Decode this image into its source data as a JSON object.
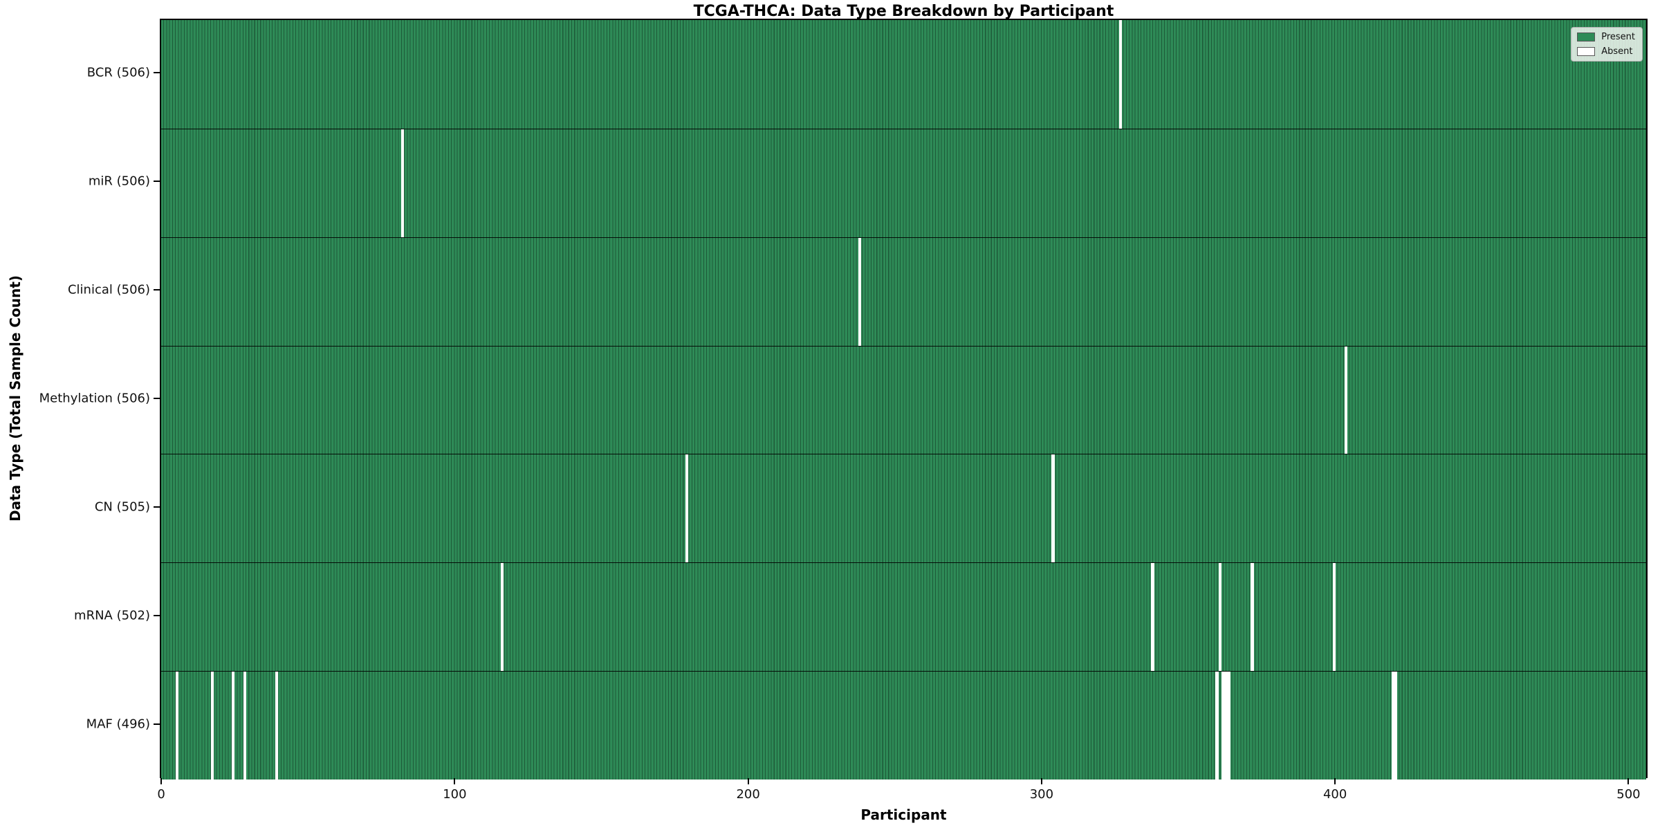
{
  "title": "TCGA-THCA: Data Type Breakdown by Participant",
  "legend": {
    "present_label": "Present",
    "absent_label": "Absent"
  },
  "chart_data": {
    "type": "heatmap",
    "title": "TCGA-THCA: Data Type Breakdown by Participant",
    "xlabel": "Participant",
    "ylabel": "Data Type (Total Sample Count)",
    "x_ticks": [
      0,
      100,
      200,
      300,
      400,
      500
    ],
    "x_range": [
      0,
      507
    ],
    "participants_total": 507,
    "grid": false,
    "legend_position": "upper-right",
    "colors": {
      "present": "#2E8B57",
      "bar_edge": "#1D5A38",
      "absent": "#FFFFFF",
      "axis": "#000000",
      "background": "#FFFFFF"
    },
    "legend_entries": [
      {
        "label": "Present",
        "color": "#2E8B57"
      },
      {
        "label": "Absent",
        "color": "#FFFFFF"
      }
    ],
    "rows": [
      {
        "data_type": "BCR",
        "label": "BCR (506)",
        "present_count": 506,
        "absent_participants": [
          327
        ]
      },
      {
        "data_type": "miR",
        "label": "miR (506)",
        "present_count": 506,
        "absent_participants": [
          82
        ]
      },
      {
        "data_type": "Clinical",
        "label": "Clinical (506)",
        "present_count": 506,
        "absent_participants": [
          238
        ]
      },
      {
        "data_type": "Methylation",
        "label": "Methylation (506)",
        "present_count": 506,
        "absent_participants": [
          404
        ]
      },
      {
        "data_type": "CN",
        "label": "CN (505)",
        "present_count": 505,
        "absent_participants": [
          179,
          304
        ]
      },
      {
        "data_type": "mRNA",
        "label": "mRNA (502)",
        "present_count": 502,
        "absent_participants": [
          116,
          338,
          361,
          372,
          400
        ]
      },
      {
        "data_type": "MAF",
        "label": "MAF (496)",
        "present_count": 496,
        "absent_participants": [
          5,
          17,
          24,
          28,
          39,
          360,
          362,
          363,
          364,
          420,
          421
        ]
      }
    ]
  }
}
